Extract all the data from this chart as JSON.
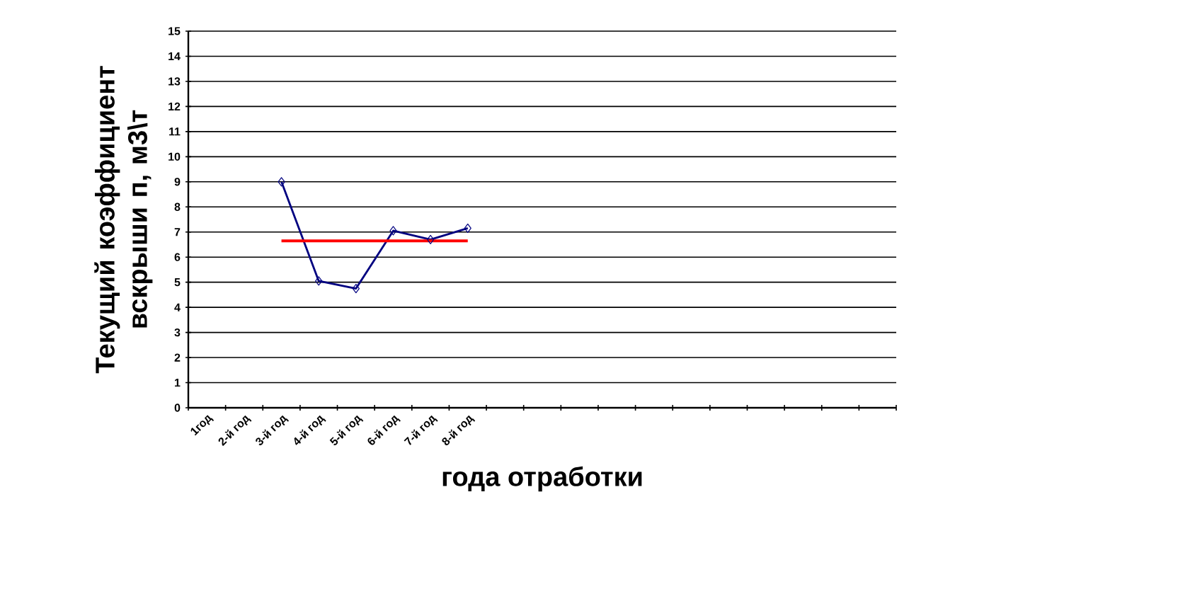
{
  "chart_data": {
    "type": "line",
    "xlabel": "года отработки",
    "ylabel": "Текущий  коэффициент вскрыши п, м3\\т",
    "categories": [
      "1год",
      "2-й год",
      "3-й год",
      "4-й год",
      "5-й год",
      "6-й год",
      "7-й год",
      "8-й год",
      null,
      null,
      null,
      null,
      null,
      null,
      null,
      null,
      null,
      null,
      null
    ],
    "series": [
      {
        "color": "#000080",
        "marker": "diamond",
        "values": [
          null,
          null,
          9,
          5.05,
          4.75,
          7.05,
          6.7,
          7.15,
          null,
          null,
          null,
          null,
          null,
          null,
          null,
          null,
          null,
          null,
          null
        ]
      },
      {
        "color": "#ff0000",
        "marker": "none",
        "values": [
          null,
          null,
          6.65,
          6.65,
          6.65,
          6.65,
          6.65,
          6.65,
          null,
          null,
          null,
          null,
          null,
          null,
          null,
          null,
          null,
          null,
          null
        ]
      }
    ],
    "ylim": [
      0,
      15
    ],
    "yticks": [
      0,
      1,
      2,
      3,
      4,
      5,
      6,
      7,
      8,
      9,
      10,
      11,
      12,
      13,
      14,
      15
    ],
    "grid": "y",
    "line_style": "solid"
  }
}
